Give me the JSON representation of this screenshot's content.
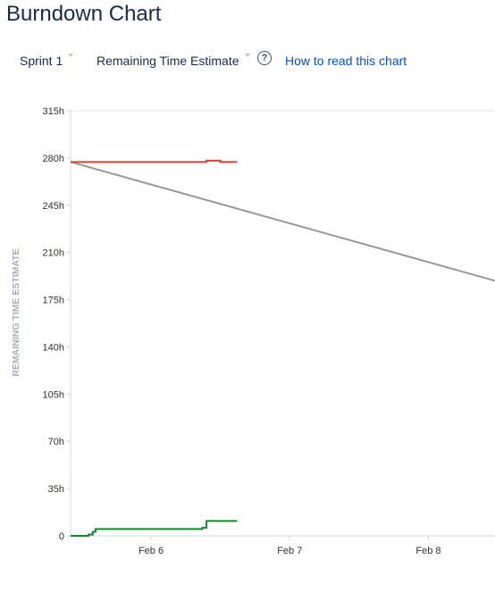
{
  "header": {
    "title": "Burndown Chart"
  },
  "toolbar": {
    "sprint_label": "Sprint 1",
    "metric_label": "Remaining Time Estimate",
    "help_glyph": "?",
    "help_link": "How to read this chart"
  },
  "chart_data": {
    "type": "line",
    "ylabel": "REMAINING TIME ESTIMATE",
    "y_ticks": [
      "315h",
      "280h",
      "245h",
      "210h",
      "175h",
      "140h",
      "105h",
      "70h",
      "35h",
      "0"
    ],
    "ylim": [
      0,
      315
    ],
    "x_ticks": [
      "Feb 6",
      "Feb 7",
      "Feb 8"
    ],
    "xlim_days": [
      5.42,
      8.48
    ],
    "x_tick_days": [
      6,
      7,
      8
    ],
    "grid": false,
    "series": [
      {
        "key": "guideline",
        "color": "#999999",
        "shape": "linear",
        "points": [
          [
            5.42,
            277
          ],
          [
            8.48,
            189
          ]
        ]
      },
      {
        "key": "remaining",
        "color": "#d04437",
        "shape": "step",
        "points": [
          [
            5.42,
            277
          ],
          [
            5.9,
            277
          ],
          [
            6.2,
            277
          ],
          [
            6.4,
            278
          ],
          [
            6.5,
            277
          ],
          [
            6.62,
            277
          ]
        ]
      },
      {
        "key": "completed",
        "color": "#14892c",
        "shape": "step",
        "points": [
          [
            5.42,
            0
          ],
          [
            5.55,
            1
          ],
          [
            5.58,
            3
          ],
          [
            5.6,
            5
          ],
          [
            5.9,
            5
          ],
          [
            6.2,
            5
          ],
          [
            6.37,
            6
          ],
          [
            6.4,
            11
          ],
          [
            6.62,
            11
          ]
        ]
      }
    ]
  }
}
